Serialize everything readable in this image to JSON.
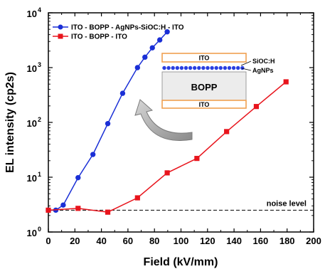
{
  "chart_data": {
    "type": "line",
    "xlabel": "Field (kV/mm)",
    "ylabel": "EL intensity (cp2s)",
    "xlim": [
      0,
      200
    ],
    "ylim": [
      1,
      10000
    ],
    "yscale": "log",
    "grid": false,
    "legend": "top-left",
    "x_ticks": [
      "0",
      "20",
      "40",
      "60",
      "80",
      "100",
      "120",
      "140",
      "160",
      "180",
      "200"
    ],
    "x_tick_values": [
      0,
      20,
      40,
      60,
      80,
      100,
      120,
      140,
      160,
      180,
      200
    ],
    "y_ticks": [
      {
        "base": "10",
        "exp": "0",
        "value": 1
      },
      {
        "base": "10",
        "exp": "1",
        "value": 10
      },
      {
        "base": "10",
        "exp": "2",
        "value": 100
      },
      {
        "base": "10",
        "exp": "3",
        "value": 1000
      },
      {
        "base": "10",
        "exp": "4",
        "value": 10000
      }
    ],
    "series": [
      {
        "name": "ITO - BOPP - AgNPs-SiOC:H - ITO",
        "color": "#1a2fd6",
        "marker": "circle",
        "x": [
          0,
          5.6,
          11.2,
          22.4,
          33.6,
          44.8,
          56,
          67.2,
          72.8,
          78.4,
          84,
          89.6
        ],
        "y": [
          2.5,
          2.5,
          3.1,
          9.8,
          26,
          95,
          340,
          1000,
          1550,
          2300,
          3200,
          4500
        ]
      },
      {
        "name": "ITO - BOPP - ITO",
        "color": "#e8141c",
        "marker": "square",
        "x": [
          0,
          22.4,
          44.8,
          67.2,
          89.6,
          112,
          134.4,
          156.8,
          179.2
        ],
        "y": [
          2.5,
          2.7,
          2.3,
          4.2,
          12,
          22,
          68,
          195,
          550
        ]
      }
    ],
    "noise_level": {
      "label": "noise level",
      "y": 2.5
    },
    "inset": {
      "top_label": "ITO",
      "middle_label": "BOPP",
      "bottom_label": "ITO",
      "callout_1": "SiOC:H",
      "callout_2": "AgNPs",
      "electrode_color": "#f0a050",
      "dots_color": "#2b3fe0"
    }
  }
}
